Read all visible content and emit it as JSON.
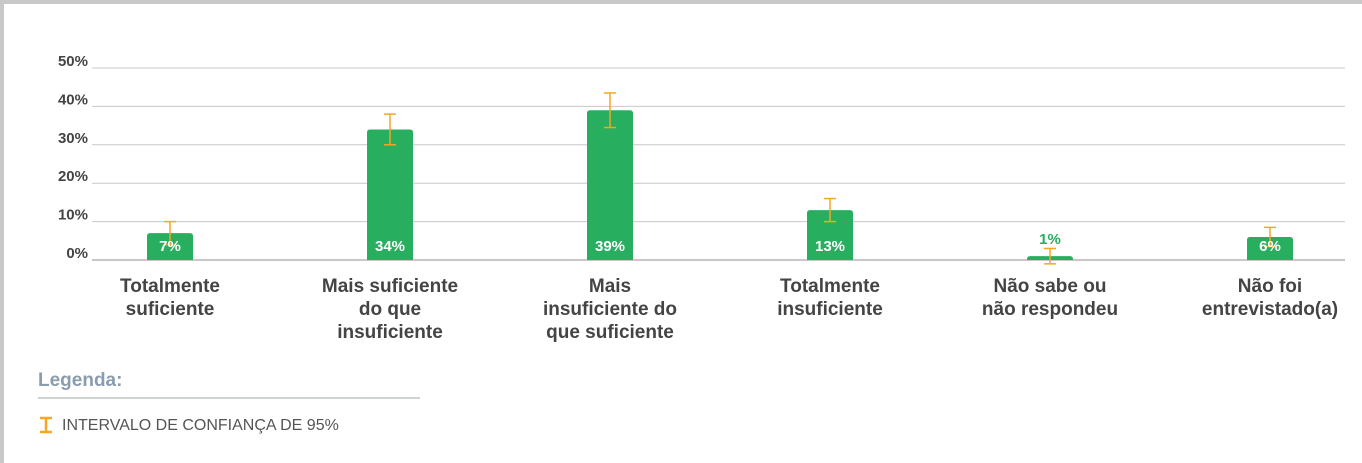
{
  "chart_data": {
    "type": "bar",
    "categories": [
      [
        "Totalmente",
        "suficiente"
      ],
      [
        "Mais suficiente",
        "do que",
        "insuficiente"
      ],
      [
        "Mais",
        "insuficiente do",
        "que suficiente"
      ],
      [
        "Totalmente",
        "insuficiente"
      ],
      [
        "Não sabe ou",
        "não respondeu"
      ],
      [
        "Não foi",
        "entrevistado(a)"
      ]
    ],
    "values": [
      7,
      34,
      39,
      13,
      1,
      6
    ],
    "value_labels": [
      "7%",
      "34%",
      "39%",
      "13%",
      "1%",
      "6%"
    ],
    "errors": [
      3,
      4,
      4.5,
      3,
      2,
      2.5
    ],
    "color": "#27ae5f",
    "error_color": "#f5a623",
    "ylim": [
      0,
      50
    ],
    "yticks": [
      {
        "value": 0,
        "label": "0%"
      },
      {
        "value": 10,
        "label": "10%"
      },
      {
        "value": 20,
        "label": "20%"
      },
      {
        "value": 30,
        "label": "30%"
      },
      {
        "value": 40,
        "label": "40%"
      },
      {
        "value": 50,
        "label": "50%"
      }
    ],
    "grid": true,
    "legend_title": "Legenda:",
    "legend_label": "INTERVALO DE CONFIANÇA DE 95%"
  }
}
